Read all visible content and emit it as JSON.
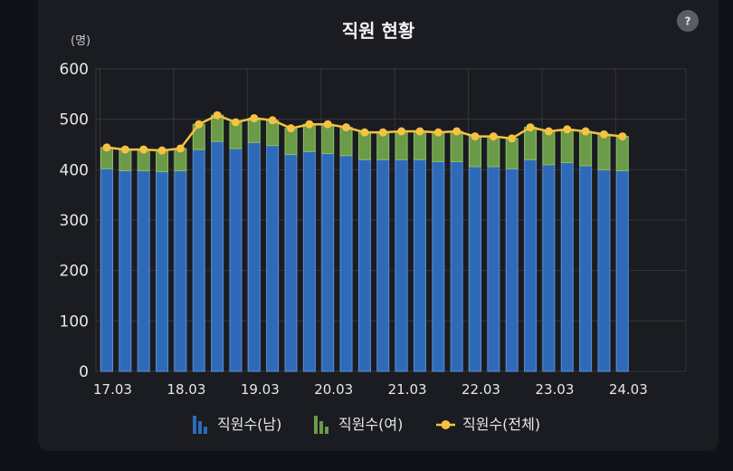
{
  "help_icon": "question-icon",
  "chart_data": {
    "type": "bar",
    "title": "직원 현황",
    "unit_label": "(명)",
    "ylim": [
      0,
      600
    ],
    "y_ticks": [
      "0",
      "100",
      "200",
      "300",
      "400",
      "500",
      "600"
    ],
    "x_ticks": [
      "17.03",
      "18.03",
      "19.03",
      "20.03",
      "21.03",
      "22.03",
      "23.03",
      "24.03"
    ],
    "grid": true,
    "legend_position": "bottom",
    "series": [
      {
        "name": "직원수(남)",
        "kind": "stacked-bar",
        "color": "#2f6ab8",
        "values": [
          402,
          398,
          398,
          396,
          398,
          440,
          456,
          442,
          454,
          448,
          430,
          436,
          432,
          428,
          420,
          420,
          420,
          420,
          416,
          416,
          406,
          406,
          402,
          420,
          410,
          414,
          408,
          400,
          398
        ]
      },
      {
        "name": "직원수(여)",
        "kind": "stacked-bar",
        "color": "#6b9a48",
        "values": [
          42,
          42,
          42,
          42,
          44,
          50,
          52,
          52,
          48,
          50,
          52,
          54,
          58,
          56,
          54,
          54,
          56,
          56,
          58,
          60,
          60,
          60,
          60,
          64,
          66,
          66,
          68,
          70,
          68
        ]
      },
      {
        "name": "직원수(전체)",
        "kind": "line",
        "color": "#f5c243",
        "values": [
          444,
          440,
          440,
          438,
          442,
          490,
          508,
          494,
          502,
          498,
          482,
          490,
          490,
          484,
          474,
          474,
          476,
          476,
          474,
          476,
          466,
          466,
          462,
          484,
          476,
          480,
          476,
          470,
          466
        ]
      }
    ]
  }
}
